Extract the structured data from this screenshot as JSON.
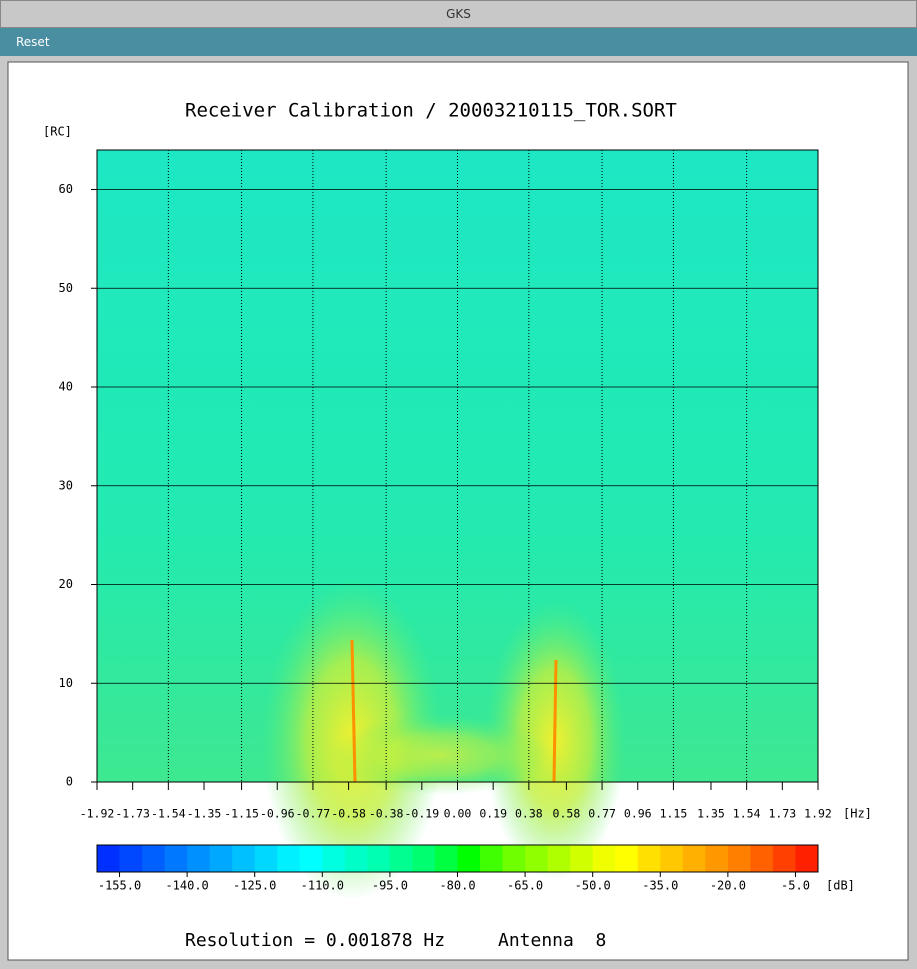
{
  "window": {
    "title": "GKS"
  },
  "menu": {
    "reset": "Reset"
  },
  "plot": {
    "title": "Receiver Calibration / 20003210115_TOR.SORT",
    "y_unit": "[RC]",
    "x_unit": "[Hz]",
    "ylim": [
      0,
      64
    ],
    "yticks": [
      0,
      10,
      20,
      30,
      40,
      50,
      60
    ],
    "y_grid": true,
    "xlim": [
      -1.92,
      1.92
    ],
    "xticks": [
      -1.92,
      -1.73,
      -1.54,
      -1.35,
      -1.15,
      -0.96,
      -0.77,
      -0.58,
      -0.38,
      -0.19,
      {
        "value": 0,
        "label": "0.00"
      },
      0.19,
      0.38,
      0.58,
      0.77,
      0.96,
      1.15,
      1.35,
      1.54,
      1.73,
      1.92
    ],
    "x_grid_every": 2
  },
  "colorbar": {
    "unit": "[dB]",
    "clim": [
      -160,
      0
    ],
    "ticks": [
      {
        "value": -155,
        "label": "-155.0"
      },
      {
        "value": -140,
        "label": "-140.0"
      },
      {
        "value": -125,
        "label": "-125.0"
      },
      {
        "value": -110,
        "label": "-110.0"
      },
      {
        "value": -95,
        "label": "-95.0"
      },
      {
        "value": -80,
        "label": "-80.0"
      },
      {
        "value": -65,
        "label": "-65.0"
      },
      {
        "value": -50,
        "label": "-50.0"
      },
      {
        "value": -35,
        "label": "-35.0"
      },
      {
        "value": -20,
        "label": "-20.0"
      },
      {
        "value": -5,
        "label": "-5.0"
      }
    ],
    "colors": [
      "#0030ff",
      "#0048ff",
      "#0060ff",
      "#0078ff",
      "#0090ff",
      "#00a8ff",
      "#00c0ff",
      "#00d8ff",
      "#00f0ff",
      "#00ffff",
      "#00ffe0",
      "#00ffc8",
      "#00ffb0",
      "#00ff90",
      "#00ff70",
      "#00ff40",
      "#00ff00",
      "#40ff00",
      "#70ff00",
      "#90ff00",
      "#b0ff00",
      "#d0ff00",
      "#f0ff00",
      "#ffff00",
      "#ffe000",
      "#ffc800",
      "#ffb000",
      "#ff9800",
      "#ff8000",
      "#ff6000",
      "#ff4000",
      "#ff2000"
    ]
  },
  "footer": {
    "resolution": "Resolution = 0.001878 Hz",
    "antenna": "Antenna  8"
  }
}
